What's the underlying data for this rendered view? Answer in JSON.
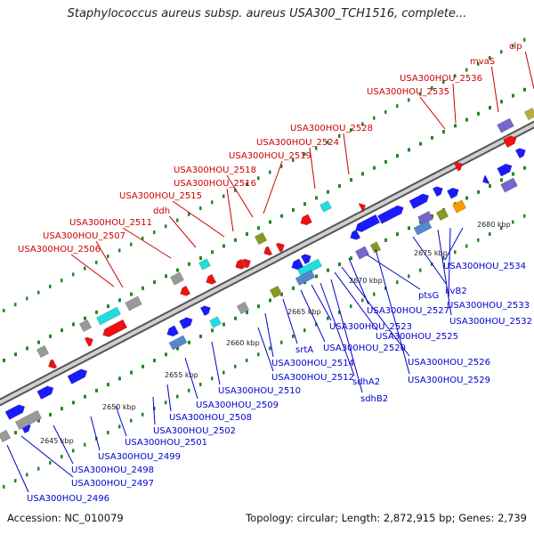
{
  "header": {
    "title": "Staphylococcus aureus subsp. aureus USA300_TCH1516, complete..."
  },
  "footer": {
    "accession": "Accession: NC_010079",
    "summary": "Topology: circular; Length: 2,872,915 bp; Genes: 2,739"
  },
  "colors": {
    "top_strand_label": "#cc0000",
    "bottom_strand_label": "#0000cc",
    "axis": "#888888",
    "gene_blue": "#1a1aff",
    "gene_red": "#ee1111",
    "gene_gray": "#999999",
    "gene_cyan": "#22dddd",
    "gene_olive": "#889922",
    "gene_purple": "#7766cc",
    "gene_orange": "#ff9900",
    "gene_steel": "#5588cc",
    "guide_dots": "#228822"
  },
  "scale": {
    "unit": "kbp",
    "ticks": [
      "2645 kbp",
      "2650 kbp",
      "2655 kbp",
      "2660 kbp",
      "2665 kbp",
      "2670 kbp",
      "2675 kbp",
      "2680 kbp"
    ]
  },
  "genes_top": [
    "USA300HOU_2506",
    "USA300HOU_2507",
    "USA300HOU_2511",
    "ddh",
    "USA300HOU_2515",
    "USA300HOU_2516",
    "USA300HOU_2518",
    "USA300HOU_2519",
    "USA300HOU_2524",
    "USA300HOU_2528",
    "USA300HOU_2535",
    "USA300HOU_2536",
    "mvaS",
    "clp"
  ],
  "genes_bottom": [
    "USA300HOU_2496",
    "USA300HOU_2497",
    "USA300HOU_2498",
    "USA300HOU_2499",
    "USA300HOU_2501",
    "USA300HOU_2502",
    "USA300HOU_2508",
    "USA300HOU_2509",
    "USA300HOU_2510",
    "USA300HOU_2512",
    "USA300HOU_2514",
    "srtA",
    "USA300HOU_2520",
    "USA300HOU_2523",
    "sdhA2",
    "sdhB2",
    "USA300HOU_2525",
    "USA300HOU_2526",
    "USA300HOU_2527",
    "ptsG",
    "USA300HOU_2529",
    "ilvB2",
    "USA300HOU_2532",
    "USA300HOU_2533",
    "USA300HOU_2534"
  ]
}
